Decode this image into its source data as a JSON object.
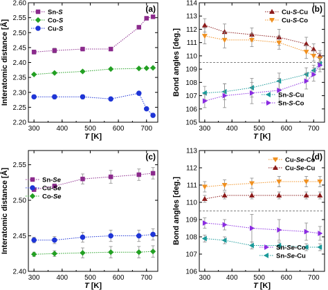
{
  "chart_data": [
    {
      "panel": "(a)",
      "type": "line",
      "xlabel": "T [K]",
      "ylabel": "Interatomic distance [Å]",
      "xlim": [
        280,
        740
      ],
      "ylim": [
        2.2,
        2.6
      ],
      "xticks": [
        300,
        400,
        500,
        600,
        700
      ],
      "yticks": [
        2.2,
        2.25,
        2.3,
        2.35,
        2.4,
        2.45,
        2.5,
        2.55,
        2.6
      ],
      "ytick_labels": [
        "2.20",
        "2.25",
        "2.30",
        "2.35",
        "2.40",
        "2.45",
        "2.50",
        "2.55",
        "2.60"
      ],
      "reference_line": null,
      "legend_position": "top-left",
      "series": [
        {
          "name": "Sn-S",
          "color": "#8b2a8c",
          "marker": "square",
          "x": [
            300,
            373,
            473,
            573,
            673,
            700,
            723
          ],
          "y": [
            2.435,
            2.44,
            2.445,
            2.445,
            2.518,
            2.548,
            2.553
          ],
          "err": [
            0.007,
            0.008,
            0.006,
            0.005,
            0.006,
            0.005,
            0.005
          ]
        },
        {
          "name": "Co-S",
          "color": "#23a023",
          "marker": "diamond",
          "x": [
            300,
            373,
            473,
            573,
            673,
            700,
            723
          ],
          "y": [
            2.36,
            2.365,
            2.37,
            2.378,
            2.38,
            2.381,
            2.382
          ],
          "err": [
            0,
            0,
            0,
            0,
            0,
            0,
            0
          ]
        },
        {
          "name": "Cu-S",
          "color": "#1e35d6",
          "marker": "circle",
          "x": [
            300,
            373,
            473,
            573,
            673,
            700,
            723
          ],
          "y": [
            2.285,
            2.285,
            2.285,
            2.278,
            2.297,
            2.245,
            2.223
          ],
          "err": [
            0.006,
            0.007,
            0.007,
            0.005,
            0.005,
            0.005,
            0.004
          ]
        }
      ]
    },
    {
      "panel": "(b)",
      "type": "line",
      "xlabel": "T [K]",
      "ylabel": "Bond angles [deg.]",
      "xlim": [
        280,
        740
      ],
      "ylim": [
        105,
        114
      ],
      "xticks": [
        300,
        400,
        500,
        600,
        700
      ],
      "yticks": [
        105,
        106,
        107,
        108,
        109,
        110,
        111,
        112,
        113,
        114
      ],
      "ytick_labels": [
        "105",
        "106",
        "107",
        "108",
        "109",
        "110",
        "111",
        "112",
        "113",
        "114"
      ],
      "reference_line": 109.5,
      "legend_groups": [
        "top-right",
        "bottom-right"
      ],
      "series": [
        {
          "name": "Cu-S-Cu",
          "color": "#8b1a1a",
          "marker": "triangle-up",
          "legend": 0,
          "x": [
            300,
            373,
            473,
            573,
            673,
            700,
            723
          ],
          "y": [
            112.3,
            111.8,
            111.6,
            111.4,
            110.9,
            110.5,
            110.0
          ],
          "err": [
            0.5,
            0.6,
            0.5,
            0.6,
            0.5,
            0.4,
            0.4
          ]
        },
        {
          "name": "Cu-S-Co",
          "color": "#f09020",
          "marker": "triangle-down",
          "legend": 0,
          "x": [
            300,
            373,
            473,
            573,
            673,
            700,
            723
          ],
          "y": [
            111.5,
            111.2,
            111.2,
            111.0,
            110.3,
            110.0,
            109.8
          ],
          "err": [
            0.6,
            0.6,
            0.5,
            0.5,
            0.5,
            0.4,
            0.4
          ]
        },
        {
          "name": "Sn-S-Cu",
          "color": "#1a9a9a",
          "marker": "triangle-left",
          "legend": 1,
          "x": [
            300,
            373,
            473,
            573,
            673,
            700,
            723
          ],
          "y": [
            107.2,
            107.3,
            107.6,
            108.1,
            108.6,
            108.9,
            109.4
          ],
          "err": [
            0.5,
            0.6,
            0.7,
            0.6,
            0.5,
            0.4,
            0.4
          ]
        },
        {
          "name": "Sn-S-Co",
          "color": "#8a2be2",
          "marker": "triangle-right",
          "legend": 1,
          "x": [
            300,
            373,
            473,
            573,
            673,
            700,
            723
          ],
          "y": [
            106.6,
            107.0,
            107.2,
            107.4,
            108.1,
            108.6,
            109.3
          ],
          "err": [
            0.5,
            0.9,
            0.8,
            0.9,
            0.6,
            0.5,
            0.5
          ]
        }
      ]
    },
    {
      "panel": "(c)",
      "type": "line",
      "xlabel": "T [K]",
      "ylabel": "Interatomic distance [Å]",
      "xlim": [
        280,
        740
      ],
      "ylim": [
        2.4,
        2.57
      ],
      "xticks": [
        300,
        400,
        500,
        600,
        700
      ],
      "yticks": [
        2.4,
        2.45,
        2.5,
        2.55
      ],
      "ytick_labels": [
        "2.40",
        "2.45",
        "2.50",
        "2.55"
      ],
      "reference_line": null,
      "legend_position": "middle-left",
      "series": [
        {
          "name": "Sn-Se",
          "color": "#8b2a8c",
          "marker": "square",
          "x": [
            300,
            373,
            473,
            573,
            673,
            723
          ],
          "y": [
            2.515,
            2.52,
            2.53,
            2.533,
            2.536,
            2.538
          ],
          "err": [
            0.002,
            0.003,
            0.007,
            0.009,
            0.008,
            0.008
          ]
        },
        {
          "name": "Cu-Se",
          "color": "#1e35d6",
          "marker": "circle",
          "x": [
            300,
            373,
            473,
            573,
            673,
            723
          ],
          "y": [
            2.444,
            2.444,
            2.448,
            2.45,
            2.45,
            2.452
          ],
          "err": [
            0.004,
            0.005,
            0.007,
            0.008,
            0.008,
            0.008
          ]
        },
        {
          "name": "Co-Se",
          "color": "#23a023",
          "marker": "diamond",
          "x": [
            300,
            373,
            473,
            573,
            673,
            723
          ],
          "y": [
            2.424,
            2.425,
            2.426,
            2.427,
            2.427,
            2.428
          ],
          "err": [
            0.003,
            0.004,
            0.007,
            0.008,
            0.008,
            0.008
          ]
        }
      ]
    },
    {
      "panel": "(d)",
      "type": "line",
      "xlabel": "T [K]",
      "ylabel": "Bond angles [deg.]",
      "xlim": [
        280,
        740
      ],
      "ylim": [
        106,
        113
      ],
      "xticks": [
        300,
        400,
        500,
        600,
        700
      ],
      "yticks": [
        106,
        107,
        108,
        109,
        110,
        111,
        112,
        113
      ],
      "ytick_labels": [
        "106",
        "107",
        "108",
        "109",
        "110",
        "111",
        "112",
        "113"
      ],
      "reference_line": 109.5,
      "legend_groups": [
        "top-right",
        "bottom-right"
      ],
      "series": [
        {
          "name": "Cu-Se-Co",
          "color": "#f09020",
          "marker": "triangle-down",
          "legend": 0,
          "x": [
            300,
            373,
            473,
            573,
            673,
            723
          ],
          "y": [
            110.9,
            111.0,
            111.1,
            111.2,
            111.2,
            111.2
          ],
          "err": [
            0.3,
            0.3,
            0.3,
            0.3,
            0.3,
            0.3
          ]
        },
        {
          "name": "Cu-Se-Cu",
          "color": "#8b1a1a",
          "marker": "triangle-up",
          "legend": 0,
          "x": [
            300,
            373,
            473,
            573,
            673,
            723
          ],
          "y": [
            110.2,
            110.4,
            110.4,
            110.4,
            110.4,
            110.4
          ],
          "err": [
            0.2,
            0.2,
            0.2,
            0.2,
            0.2,
            0.2
          ]
        },
        {
          "name": "Sn-Se-Co",
          "color": "#8a2be2",
          "marker": "triangle-right",
          "legend": 1,
          "x": [
            300,
            373,
            473,
            573,
            673,
            723
          ],
          "y": [
            108.8,
            108.7,
            108.5,
            108.4,
            108.3,
            108.2
          ],
          "err": [
            0.3,
            0.3,
            0.8,
            0.6,
            0.5,
            0.4
          ]
        },
        {
          "name": "Sn-Se-Cu",
          "color": "#1a9a9a",
          "marker": "triangle-left",
          "legend": 1,
          "x": [
            300,
            373,
            473,
            573,
            673,
            723
          ],
          "y": [
            107.9,
            107.8,
            107.5,
            107.5,
            107.4,
            107.4
          ],
          "err": [
            0.2,
            0.2,
            0.2,
            0.2,
            0.2,
            0.2
          ]
        }
      ]
    }
  ]
}
